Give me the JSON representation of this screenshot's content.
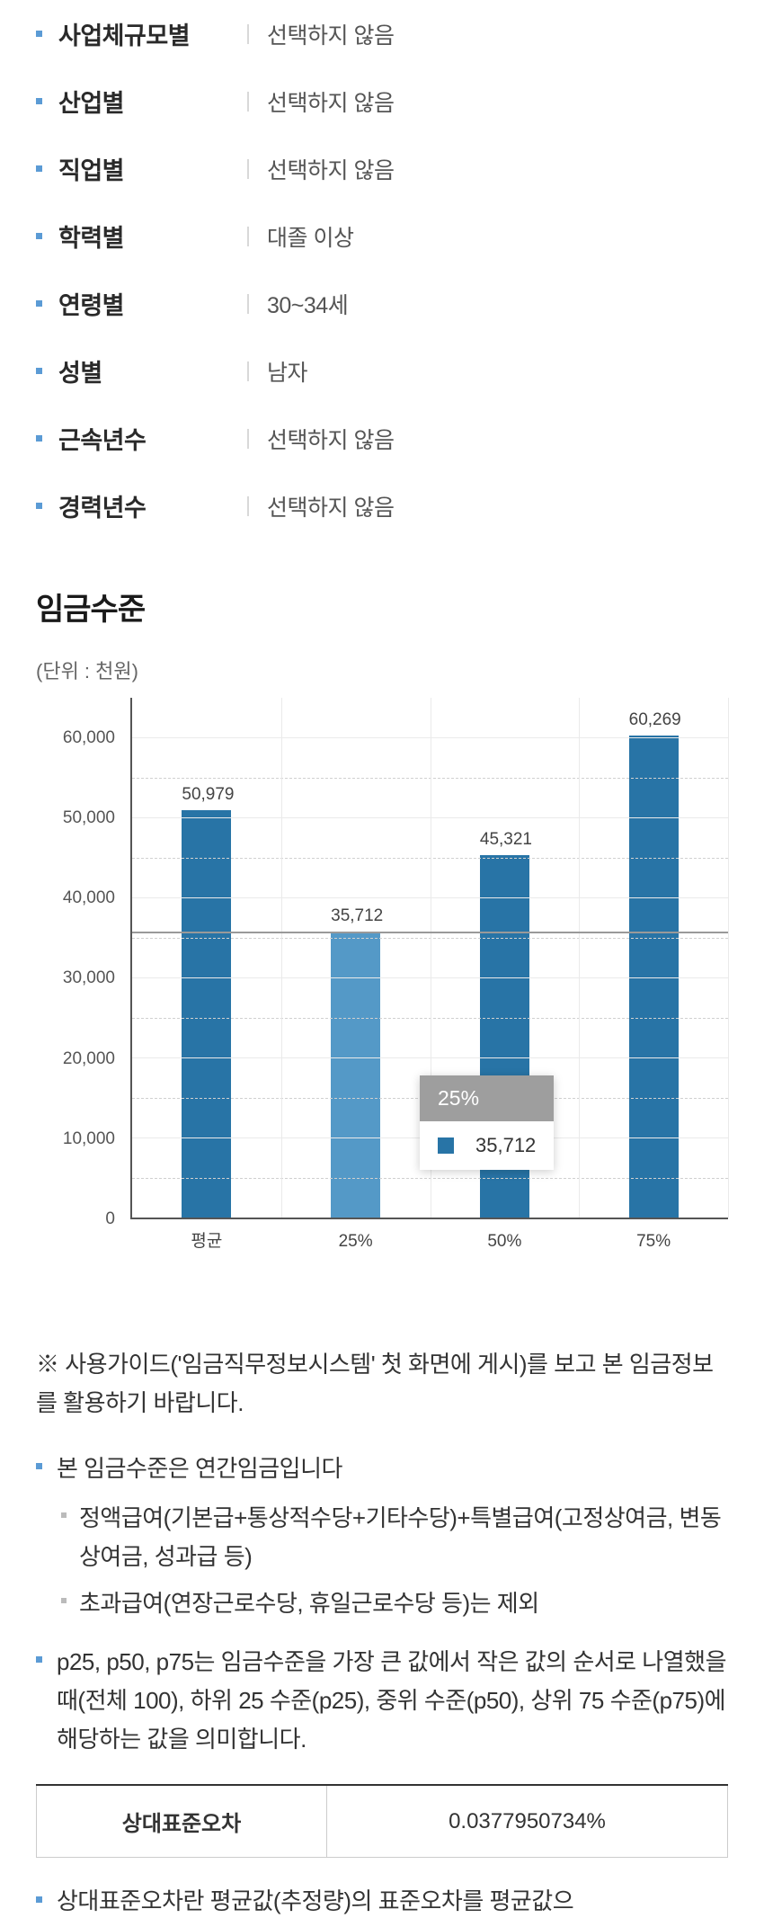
{
  "filters": [
    {
      "label": "사업체규모별",
      "value": "선택하지 않음"
    },
    {
      "label": "산업별",
      "value": "선택하지 않음"
    },
    {
      "label": "직업별",
      "value": "선택하지 않음"
    },
    {
      "label": "학력별",
      "value": "대졸 이상"
    },
    {
      "label": "연령별",
      "value": "30~34세"
    },
    {
      "label": "성별",
      "value": "남자"
    },
    {
      "label": "근속년수",
      "value": "선택하지 않음"
    },
    {
      "label": "경력년수",
      "value": "선택하지 않음"
    }
  ],
  "section_title": "임금수준",
  "unit": "(단위 : 천원)",
  "chart": {
    "type": "bar",
    "ymax": 65000,
    "ytick_step": 10000,
    "yticks": [
      "0",
      "10,000",
      "20,000",
      "30,000",
      "40,000",
      "50,000",
      "60,000"
    ],
    "categories": [
      "평균",
      "25%",
      "50%",
      "75%"
    ],
    "values": [
      50979,
      35712,
      45321,
      60269
    ],
    "value_labels": [
      "50,979",
      "35,712",
      "45,321",
      "60,269"
    ],
    "bar_colors": [
      "#2874a6",
      "#5499c7",
      "#2874a6",
      "#2874a6"
    ],
    "ref_line_value": 35712,
    "grid_color": "#eaeaea",
    "dashed_grid_color": "#d0d0d0",
    "axis_color": "#555555",
    "background_color": "#ffffff",
    "tooltip": {
      "title": "25%",
      "value": "35,712",
      "swatch_color": "#2874a6"
    }
  },
  "notes": {
    "guide": "※  사용가이드('임금직무정보시스템' 첫 화면에 게시)를 보고 본 임금정보를 활용하기 바랍니다.",
    "item1": "본 임금수준은 연간임금입니다",
    "sub1": "정액급여(기본급+통상적수당+기타수당)+특별급여(고정상여금, 변동상여금, 성과급 등)",
    "sub2": "초과급여(연장근로수당, 휴일근로수당 등)는 제외",
    "item2": "p25, p50, p75는 임금수준을 가장 큰 값에서 작은 값의 순서로 나열했을때(전체 100), 하위 25 수준(p25), 중위 수준(p50), 상위 75 수준(p75)에 해당하는 값을 의미합니다."
  },
  "error_table": {
    "label": "상대표준오차",
    "value": "0.0377950734%"
  },
  "truncated_text": "상대표준오차란 평균값(추정량)의 표준오차를 평균값으"
}
